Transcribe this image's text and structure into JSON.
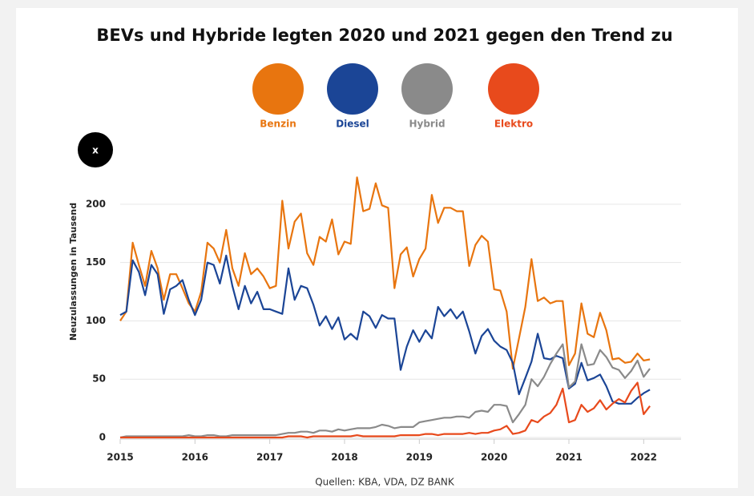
{
  "chart_data": {
    "type": "line",
    "title": "BEVs und Hybride legten 2020 und 2021 gegen den Trend zu",
    "ylabel": "Neuzulassungen in Tausend",
    "source": "Quellen: KBA, VDA, DZ BANK",
    "close_button": "x",
    "x": [
      2015,
      2015.083,
      2015.167,
      2015.25,
      2015.333,
      2015.417,
      2015.5,
      2015.583,
      2015.667,
      2015.75,
      2015.833,
      2015.917,
      2016,
      2016.083,
      2016.167,
      2016.25,
      2016.333,
      2016.417,
      2016.5,
      2016.583,
      2016.667,
      2016.75,
      2016.833,
      2016.917,
      2017,
      2017.083,
      2017.167,
      2017.25,
      2017.333,
      2017.417,
      2017.5,
      2017.583,
      2017.667,
      2017.75,
      2017.833,
      2017.917,
      2018,
      2018.083,
      2018.167,
      2018.25,
      2018.333,
      2018.417,
      2018.5,
      2018.583,
      2018.667,
      2018.75,
      2018.833,
      2018.917,
      2019,
      2019.083,
      2019.167,
      2019.25,
      2019.333,
      2019.417,
      2019.5,
      2019.583,
      2019.667,
      2019.75,
      2019.833,
      2019.917,
      2020,
      2020.083,
      2020.167,
      2020.25,
      2020.333,
      2020.417,
      2020.5,
      2020.583,
      2020.667,
      2020.75,
      2020.833,
      2020.917,
      2021,
      2021.083,
      2021.167,
      2021.25,
      2021.333,
      2021.417,
      2021.5,
      2021.583,
      2021.667,
      2021.75,
      2021.833,
      2021.917,
      2022,
      2022.083
    ],
    "xlim": [
      2015,
      2022.5
    ],
    "xticks": [
      2015,
      2016,
      2017,
      2018,
      2019,
      2020,
      2021,
      2022
    ],
    "ylim": [
      0,
      225
    ],
    "yticks": [
      0,
      50,
      100,
      150,
      200
    ],
    "grid": true,
    "series": [
      {
        "name": "Benzin",
        "color": "#e8750f",
        "values": [
          100,
          108,
          167,
          148,
          130,
          160,
          145,
          118,
          140,
          140,
          128,
          115,
          108,
          125,
          167,
          162,
          150,
          178,
          145,
          130,
          158,
          140,
          145,
          138,
          128,
          130,
          203,
          162,
          185,
          192,
          158,
          148,
          172,
          168,
          187,
          157,
          168,
          166,
          223,
          194,
          196,
          218,
          199,
          197,
          128,
          157,
          163,
          138,
          153,
          162,
          208,
          184,
          197,
          197,
          194,
          194,
          147,
          165,
          173,
          168,
          127,
          126,
          108,
          59,
          85,
          112,
          153,
          117,
          120,
          115,
          117,
          117,
          62,
          72,
          115,
          89,
          86,
          107,
          92,
          67,
          68,
          64,
          65,
          72,
          66,
          67
        ]
      },
      {
        "name": "Diesel",
        "color": "#1b4596",
        "values": [
          105,
          108,
          152,
          142,
          122,
          148,
          140,
          106,
          127,
          130,
          135,
          118,
          105,
          118,
          150,
          148,
          132,
          156,
          130,
          110,
          130,
          115,
          125,
          110,
          110,
          108,
          106,
          145,
          118,
          130,
          128,
          114,
          96,
          104,
          93,
          103,
          84,
          89,
          84,
          108,
          104,
          94,
          105,
          102,
          102,
          58,
          78,
          92,
          82,
          92,
          85,
          112,
          104,
          110,
          102,
          108,
          91,
          72,
          87,
          93,
          83,
          78,
          75,
          64,
          37,
          51,
          65,
          89,
          68,
          67,
          70,
          68,
          42,
          46,
          64,
          49,
          51,
          54,
          44,
          31,
          29,
          29,
          29,
          34,
          38,
          41
        ]
      },
      {
        "name": "Hybrid",
        "color": "#8a8a8a",
        "values": [
          0,
          1,
          1,
          1,
          1,
          1,
          1,
          1,
          1,
          1,
          1,
          2,
          1,
          1,
          2,
          2,
          1,
          1,
          2,
          2,
          2,
          2,
          2,
          2,
          2,
          2,
          3,
          4,
          4,
          5,
          5,
          4,
          6,
          6,
          5,
          7,
          6,
          7,
          8,
          8,
          8,
          9,
          11,
          10,
          8,
          9,
          9,
          9,
          13,
          14,
          15,
          16,
          17,
          17,
          18,
          18,
          17,
          22,
          23,
          22,
          28,
          28,
          27,
          13,
          20,
          28,
          50,
          44,
          52,
          63,
          72,
          80,
          43,
          48,
          80,
          62,
          63,
          75,
          69,
          60,
          58,
          51,
          57,
          66,
          52,
          59
        ]
      },
      {
        "name": "Elektro",
        "color": "#e84a1c",
        "values": [
          0,
          0,
          0,
          0,
          0,
          0,
          0,
          0,
          0,
          0,
          0,
          0,
          0,
          0,
          0,
          0,
          0,
          0,
          0,
          0,
          0,
          0,
          0,
          0,
          0,
          0,
          0,
          1,
          1,
          1,
          0,
          1,
          1,
          1,
          1,
          1,
          1,
          1,
          2,
          1,
          1,
          1,
          1,
          1,
          1,
          2,
          2,
          2,
          2,
          3,
          3,
          2,
          3,
          3,
          3,
          3,
          4,
          3,
          4,
          4,
          6,
          7,
          10,
          3,
          4,
          6,
          15,
          13,
          18,
          21,
          28,
          42,
          13,
          15,
          28,
          22,
          25,
          32,
          24,
          29,
          33,
          30,
          40,
          47,
          20,
          27
        ]
      }
    ]
  }
}
